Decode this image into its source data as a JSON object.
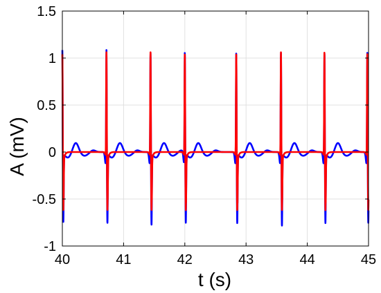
{
  "chart_data": {
    "type": "line",
    "xlabel": "t (s)",
    "ylabel": "A (mV)",
    "xlim": [
      40,
      45
    ],
    "ylim": [
      -1,
      1.5
    ],
    "xticks": [
      40,
      41,
      42,
      43,
      44,
      45
    ],
    "yticks": [
      -1,
      -0.5,
      0,
      0.5,
      1,
      1.5
    ],
    "xtick_labels": [
      "40",
      "41",
      "42",
      "43",
      "44",
      "45"
    ],
    "ytick_labels": [
      "-1",
      "-0.5",
      "0",
      "0.5",
      "1",
      "1.5"
    ],
    "grid": true,
    "r_peaks": [
      40.0,
      40.72,
      41.44,
      42.0,
      42.84,
      43.57,
      44.28,
      44.98
    ],
    "series": [
      {
        "color": "#0000ff",
        "r_amplitudes": [
          1.18,
          1.18,
          1.15,
          1.15,
          1.15,
          1.15,
          1.15,
          1.15
        ],
        "s_amplitudes": [
          -0.72,
          -0.73,
          -0.75,
          -0.73,
          -0.73,
          -0.76,
          -0.73,
          -0.73
        ],
        "t_wave_amplitude": 0.1,
        "baseline_dip": -0.06
      },
      {
        "color": "#ff0000",
        "r_amplitudes": [
          1.05,
          1.07,
          1.07,
          1.05,
          1.05,
          1.07,
          1.07,
          1.05
        ],
        "s_amplitudes": [
          -0.62,
          -0.62,
          -0.62,
          -0.62,
          -0.62,
          -0.62,
          -0.62,
          -0.62
        ],
        "baseline": 0.0
      }
    ]
  }
}
